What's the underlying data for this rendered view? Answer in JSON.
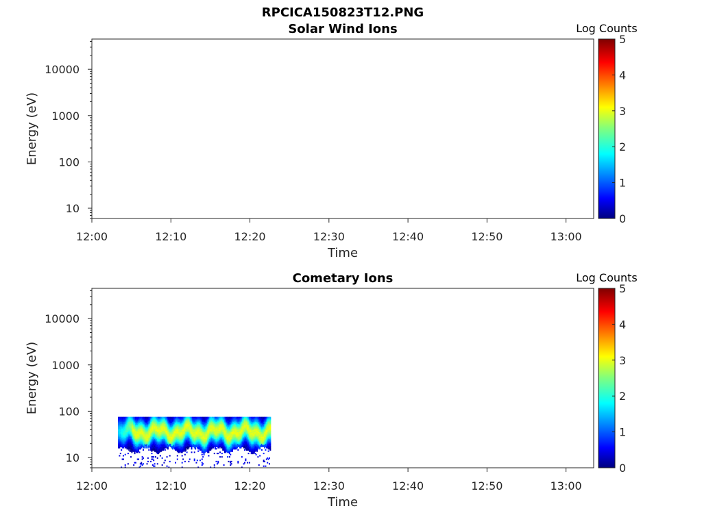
{
  "figure_title": "RPCICA150823T12.PNG",
  "colormap": [
    "#00007f",
    "#0000ff",
    "#007fff",
    "#00ffff",
    "#7fff7f",
    "#ffff00",
    "#ff7f00",
    "#ff0000",
    "#7f0000"
  ],
  "chart_data": [
    {
      "type": "heatmap",
      "title": "Solar Wind Ions",
      "xlabel": "Time",
      "ylabel": "Energy (eV)",
      "x_ticks": [
        "12:00",
        "12:10",
        "12:20",
        "12:30",
        "12:40",
        "12:50",
        "13:00"
      ],
      "x_range_minutes": [
        0,
        63.5
      ],
      "y_scale": "log",
      "y_range": [
        6,
        45000
      ],
      "y_ticks": [
        10,
        100,
        1000,
        10000
      ],
      "y_tick_labels": [
        "10",
        "100",
        "1000",
        "10000"
      ],
      "colorbar": {
        "label": "Log Counts",
        "range": [
          0,
          5
        ],
        "ticks": [
          "0",
          "1",
          "2",
          "3",
          "4",
          "5"
        ]
      },
      "data": []
    },
    {
      "type": "heatmap",
      "title": "Cometary Ions",
      "xlabel": "Time",
      "ylabel": "Energy (eV)",
      "x_ticks": [
        "12:00",
        "12:10",
        "12:20",
        "12:30",
        "12:40",
        "12:50",
        "13:00"
      ],
      "x_range_minutes": [
        0,
        63.5
      ],
      "y_scale": "log",
      "y_range": [
        6,
        45000
      ],
      "y_ticks": [
        10,
        100,
        1000,
        10000
      ],
      "y_tick_labels": [
        "10",
        "100",
        "1000",
        "10000"
      ],
      "colorbar": {
        "label": "Log Counts",
        "range": [
          0,
          5
        ],
        "ticks": [
          "0",
          "1",
          "2",
          "3",
          "4",
          "5"
        ]
      },
      "data": {
        "time_start_minutes": 3.3,
        "time_end_minutes": 22.6,
        "energy_min_eV": 6,
        "energy_max_eV": 80,
        "peak_energy_eV": 35,
        "peak_log_counts": 3.0,
        "note_shape": "band of ion counts between ~10 and ~80 eV, peak near 30-40 eV"
      }
    }
  ]
}
